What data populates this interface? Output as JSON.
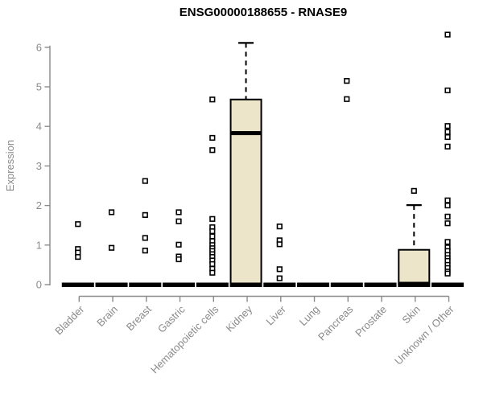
{
  "title": "ENSG00000188655 - RNASE9",
  "chart_data": {
    "type": "boxplot",
    "title": "ENSG00000188655 - RNASE9",
    "xlabel": "",
    "ylabel": "Expression",
    "ylim": [
      0,
      6.4
    ],
    "yticks": [
      0,
      1,
      2,
      3,
      4,
      5,
      6
    ],
    "grid": false,
    "legend": "none",
    "categories": [
      "Bladder",
      "Brain",
      "Breast",
      "Gastric",
      "Hematopoietic cells",
      "Kidney",
      "Liver",
      "Lung",
      "Pancreas",
      "Prostate",
      "Skin",
      "Unknown / Other"
    ],
    "series": [
      {
        "category": "Bladder",
        "zero_bar": true,
        "box": null,
        "points": [
          1.53,
          0.9,
          0.81,
          0.7
        ]
      },
      {
        "category": "Brain",
        "zero_bar": true,
        "box": null,
        "points": [
          1.83,
          0.93
        ]
      },
      {
        "category": "Breast",
        "zero_bar": true,
        "box": null,
        "points": [
          2.62,
          1.76,
          1.18,
          0.86
        ]
      },
      {
        "category": "Gastric",
        "zero_bar": true,
        "box": null,
        "points": [
          1.83,
          1.6,
          1.01,
          0.71,
          0.64
        ]
      },
      {
        "category": "Hematopoietic cells",
        "zero_bar": true,
        "box": null,
        "points": [
          4.68,
          3.71,
          3.4,
          1.66,
          1.45,
          1.35,
          1.22,
          1.1,
          1.0,
          0.92,
          0.85,
          0.77,
          0.7,
          0.61,
          0.52,
          0.4,
          0.3
        ]
      },
      {
        "category": "Kidney",
        "zero_bar": true,
        "box": {
          "q1": 0,
          "median": 3.83,
          "q3": 4.68,
          "whisker_high": 6.11
        },
        "points": []
      },
      {
        "category": "Liver",
        "zero_bar": true,
        "box": null,
        "points": [
          1.47,
          1.12,
          1.02,
          0.39,
          0.16
        ]
      },
      {
        "category": "Lung",
        "zero_bar": true,
        "box": null,
        "points": []
      },
      {
        "category": "Pancreas",
        "zero_bar": true,
        "box": null,
        "points": [
          5.15,
          4.69
        ]
      },
      {
        "category": "Prostate",
        "zero_bar": true,
        "box": null,
        "points": []
      },
      {
        "category": "Skin",
        "zero_bar": true,
        "box": {
          "q1": 0,
          "median": 0.02,
          "q3": 0.88,
          "whisker_high": 2.01
        },
        "points": [
          2.37
        ]
      },
      {
        "category": "Unknown / Other",
        "zero_bar": true,
        "box": null,
        "points": [
          6.32,
          4.91,
          4.01,
          3.86,
          3.73,
          3.49,
          2.13,
          2.0,
          1.72,
          1.55,
          1.08,
          0.94,
          0.85,
          0.75,
          0.67,
          0.6,
          0.5,
          0.42,
          0.33,
          0.28
        ]
      }
    ],
    "colors": {
      "background": "#ffffff",
      "title": "#000000",
      "axis": "#8a8a8a",
      "tick_label": "#8a8a8a",
      "box_fill": "#ece5ca",
      "box_border": "#000000",
      "median": "#000000",
      "point": "#000000",
      "zero_bar": "#000000"
    }
  }
}
